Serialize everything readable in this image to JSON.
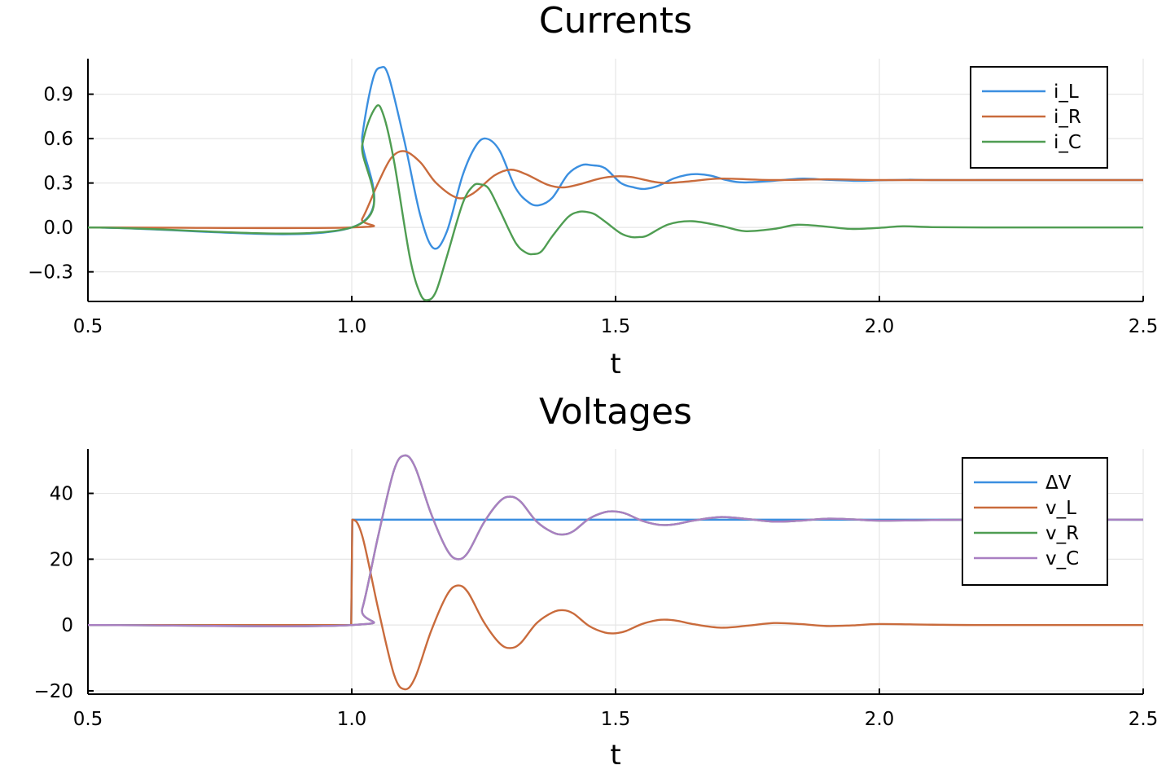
{
  "chart_data": [
    {
      "type": "line",
      "title": "Currents",
      "xlabel": "t",
      "ylabel": "",
      "xlim": [
        0.5,
        2.5
      ],
      "ylim": [
        -0.5,
        1.14
      ],
      "xticks": [
        0.5,
        1.0,
        1.5,
        2.0,
        2.5
      ],
      "xtick_labels": [
        "0.5",
        "1.0",
        "1.5",
        "2.0",
        "2.5"
      ],
      "yticks": [
        -0.3,
        0.0,
        0.3,
        0.6,
        0.9
      ],
      "ytick_labels": [
        "−0.3",
        "0.0",
        "0.3",
        "0.6",
        "0.9"
      ],
      "grid": true,
      "legend_position": "top-right",
      "series": [
        {
          "name": "i_L",
          "color": "#3b8fe0",
          "x": [
            0.5,
            1.0,
            1.02,
            1.04,
            1.055,
            1.07,
            1.1,
            1.13,
            1.155,
            1.18,
            1.21,
            1.235,
            1.255,
            1.28,
            1.31,
            1.335,
            1.355,
            1.38,
            1.41,
            1.435,
            1.455,
            1.48,
            1.51,
            1.535,
            1.555,
            1.58,
            1.61,
            1.635,
            1.655,
            1.68,
            1.71,
            1.735,
            1.755,
            1.8,
            1.855,
            1.9,
            1.955,
            2.0,
            2.055,
            2.1,
            2.2,
            2.3,
            2.5
          ],
          "y": [
            0.0,
            0.0,
            0.62,
            1.0,
            1.08,
            1.02,
            0.58,
            0.08,
            -0.14,
            -0.03,
            0.35,
            0.55,
            0.6,
            0.52,
            0.27,
            0.17,
            0.15,
            0.2,
            0.36,
            0.42,
            0.42,
            0.4,
            0.3,
            0.27,
            0.26,
            0.28,
            0.33,
            0.355,
            0.36,
            0.35,
            0.32,
            0.305,
            0.305,
            0.315,
            0.33,
            0.322,
            0.315,
            0.318,
            0.322,
            0.32,
            0.32,
            0.32,
            0.32
          ]
        },
        {
          "name": "i_R",
          "color": "#c96b3c",
          "x": [
            0.5,
            1.0,
            1.02,
            1.05,
            1.075,
            1.1,
            1.13,
            1.16,
            1.2,
            1.23,
            1.27,
            1.3,
            1.33,
            1.37,
            1.4,
            1.43,
            1.47,
            1.5,
            1.53,
            1.57,
            1.6,
            1.65,
            1.7,
            1.8,
            1.9,
            2.0,
            2.2,
            2.5
          ],
          "y": [
            0.0,
            0.0,
            0.06,
            0.3,
            0.47,
            0.515,
            0.44,
            0.3,
            0.2,
            0.23,
            0.35,
            0.39,
            0.36,
            0.29,
            0.27,
            0.29,
            0.33,
            0.345,
            0.34,
            0.31,
            0.3,
            0.315,
            0.33,
            0.32,
            0.325,
            0.32,
            0.32,
            0.32
          ]
        },
        {
          "name": "i_C",
          "color": "#4f9d52",
          "x": [
            0.5,
            1.0,
            1.02,
            1.045,
            1.06,
            1.08,
            1.11,
            1.13,
            1.145,
            1.16,
            1.18,
            1.21,
            1.23,
            1.245,
            1.26,
            1.28,
            1.31,
            1.33,
            1.345,
            1.36,
            1.38,
            1.41,
            1.43,
            1.445,
            1.46,
            1.48,
            1.51,
            1.53,
            1.545,
            1.56,
            1.6,
            1.645,
            1.7,
            1.745,
            1.8,
            1.845,
            1.9,
            1.945,
            2.0,
            2.045,
            2.1,
            2.2,
            2.3,
            2.5
          ],
          "y": [
            0.0,
            0.0,
            0.56,
            0.81,
            0.76,
            0.45,
            -0.2,
            -0.45,
            -0.49,
            -0.43,
            -0.2,
            0.16,
            0.28,
            0.29,
            0.26,
            0.12,
            -0.1,
            -0.17,
            -0.18,
            -0.16,
            -0.06,
            0.07,
            0.105,
            0.105,
            0.09,
            0.04,
            -0.04,
            -0.065,
            -0.065,
            -0.055,
            0.02,
            0.042,
            0.01,
            -0.025,
            -0.01,
            0.018,
            0.005,
            -0.01,
            -0.003,
            0.008,
            0.002,
            0.0,
            0.0,
            0.0
          ]
        }
      ]
    },
    {
      "type": "line",
      "title": "Voltages",
      "xlabel": "t",
      "ylabel": "",
      "xlim": [
        0.5,
        2.5
      ],
      "ylim": [
        -21,
        53.5
      ],
      "xticks": [
        0.5,
        1.0,
        1.5,
        2.0,
        2.5
      ],
      "xtick_labels": [
        "0.5",
        "1.0",
        "1.5",
        "2.0",
        "2.5"
      ],
      "yticks": [
        -20,
        0,
        20,
        40
      ],
      "ytick_labels": [
        "−20",
        "0",
        "20",
        "40"
      ],
      "grid": true,
      "legend_position": "top-right",
      "series": [
        {
          "name": "ΔV",
          "color": "#3b8fe0",
          "x": [
            0.5,
            0.999,
            1.001,
            2.5
          ],
          "y": [
            0,
            0,
            32,
            32
          ]
        },
        {
          "name": "v_L",
          "color": "#c96b3c",
          "x": [
            0.5,
            0.999,
            1.001,
            1.02,
            1.05,
            1.08,
            1.1,
            1.12,
            1.15,
            1.18,
            1.2,
            1.22,
            1.25,
            1.28,
            1.3,
            1.32,
            1.35,
            1.38,
            1.4,
            1.42,
            1.45,
            1.48,
            1.5,
            1.52,
            1.55,
            1.58,
            1.6,
            1.62,
            1.65,
            1.7,
            1.75,
            1.8,
            1.85,
            1.9,
            1.95,
            2.0,
            2.1,
            2.2,
            2.5
          ],
          "y": [
            0,
            0,
            32,
            27,
            5,
            -15,
            -19.5,
            -16,
            -2,
            9,
            12,
            10,
            1,
            -5.5,
            -7,
            -5.5,
            0.5,
            3.8,
            4.5,
            3.5,
            -0.3,
            -2.3,
            -2.5,
            -1.8,
            0.3,
            1.5,
            1.6,
            1.2,
            0.2,
            -0.8,
            -0.2,
            0.6,
            0.3,
            -0.3,
            -0.1,
            0.3,
            0.1,
            0,
            0
          ]
        },
        {
          "name": "v_R",
          "color": "#4f9d52",
          "x": [
            0.5,
            1.0,
            1.02,
            1.05,
            1.08,
            1.1,
            1.12,
            1.15,
            1.18,
            1.2,
            1.22,
            1.25,
            1.28,
            1.3,
            1.32,
            1.35,
            1.38,
            1.4,
            1.42,
            1.45,
            1.48,
            1.5,
            1.52,
            1.55,
            1.58,
            1.6,
            1.62,
            1.65,
            1.7,
            1.75,
            1.8,
            1.85,
            1.9,
            1.95,
            2.0,
            2.1,
            2.2,
            2.5
          ],
          "y": [
            0,
            0,
            5,
            27,
            47,
            51.5,
            48,
            34,
            23,
            20,
            22,
            31,
            37.5,
            39,
            37.5,
            31.5,
            28.2,
            27.5,
            28.5,
            32.3,
            34.3,
            34.5,
            33.8,
            31.7,
            30.5,
            30.4,
            30.8,
            31.8,
            32.8,
            32.2,
            31.4,
            31.7,
            32.3,
            32.1,
            31.7,
            31.9,
            32,
            32
          ]
        },
        {
          "name": "v_C",
          "color": "#a97fc2",
          "x": [
            0.5,
            1.0,
            1.02,
            1.05,
            1.08,
            1.1,
            1.12,
            1.15,
            1.18,
            1.2,
            1.22,
            1.25,
            1.28,
            1.3,
            1.32,
            1.35,
            1.38,
            1.4,
            1.42,
            1.45,
            1.48,
            1.5,
            1.52,
            1.55,
            1.58,
            1.6,
            1.62,
            1.65,
            1.7,
            1.75,
            1.8,
            1.85,
            1.9,
            1.95,
            2.0,
            2.1,
            2.2,
            2.5
          ],
          "y": [
            0,
            0,
            5,
            27,
            47,
            51.5,
            48,
            34,
            23,
            20,
            22,
            31,
            37.5,
            39,
            37.5,
            31.5,
            28.2,
            27.5,
            28.5,
            32.3,
            34.3,
            34.5,
            33.8,
            31.7,
            30.5,
            30.4,
            30.8,
            31.8,
            32.8,
            32.2,
            31.4,
            31.7,
            32.3,
            32.1,
            31.7,
            31.9,
            32,
            32
          ]
        }
      ]
    }
  ]
}
